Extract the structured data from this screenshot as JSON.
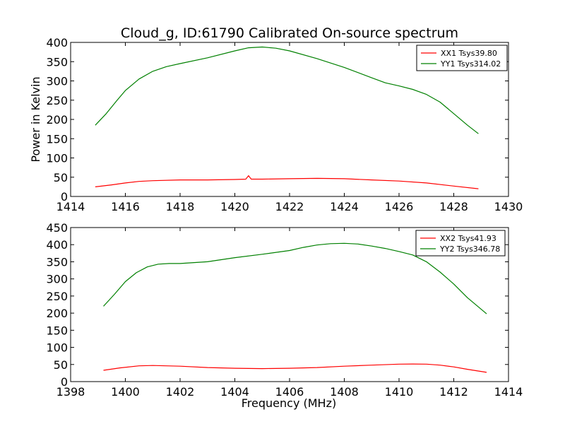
{
  "title": "Cloud_g, ID:61790 Calibrated On-source spectrum",
  "chart_data": [
    {
      "type": "line",
      "xlabel": "",
      "ylabel": "Power in Kelvin",
      "xlim": [
        1414,
        1430
      ],
      "ylim": [
        0,
        400
      ],
      "xticks": [
        1414,
        1416,
        1418,
        1420,
        1422,
        1424,
        1426,
        1428,
        1430
      ],
      "yticks": [
        0,
        50,
        100,
        150,
        200,
        250,
        300,
        350,
        400
      ],
      "legend_position": "top-right",
      "series": [
        {
          "name": "XX1 Tsys39.80",
          "color": "#ff0000",
          "x": [
            1414.9,
            1415.5,
            1416.0,
            1416.5,
            1417.0,
            1418.0,
            1419.0,
            1420.0,
            1420.4,
            1420.5,
            1420.6,
            1421.0,
            1422.0,
            1423.0,
            1424.0,
            1425.0,
            1426.0,
            1427.0,
            1428.0,
            1428.9
          ],
          "y": [
            25,
            30,
            35,
            39,
            41,
            43,
            43,
            44,
            45,
            54,
            45,
            45,
            46,
            47,
            46,
            43,
            40,
            35,
            27,
            20
          ]
        },
        {
          "name": "YY1 Tsys314.02",
          "color": "#008000",
          "x": [
            1414.9,
            1415.3,
            1415.7,
            1416.0,
            1416.5,
            1417.0,
            1417.5,
            1418.0,
            1419.0,
            1420.0,
            1420.5,
            1421.0,
            1421.5,
            1422.0,
            1423.0,
            1424.0,
            1425.0,
            1425.5,
            1426.0,
            1426.5,
            1427.0,
            1427.5,
            1428.0,
            1428.5,
            1428.9
          ],
          "y": [
            185,
            215,
            250,
            275,
            305,
            325,
            337,
            345,
            360,
            378,
            386,
            388,
            385,
            378,
            358,
            335,
            308,
            295,
            287,
            278,
            265,
            245,
            215,
            185,
            163
          ]
        }
      ]
    },
    {
      "type": "line",
      "xlabel": "Frequency (MHz)",
      "ylabel": "",
      "xlim": [
        1398,
        1414
      ],
      "ylim": [
        0,
        450
      ],
      "xticks": [
        1398,
        1400,
        1402,
        1404,
        1406,
        1408,
        1410,
        1412,
        1414
      ],
      "yticks": [
        0,
        50,
        100,
        150,
        200,
        250,
        300,
        350,
        400,
        450
      ],
      "legend_position": "top-right",
      "series": [
        {
          "name": "XX2 Tsys41.93",
          "color": "#ff0000",
          "x": [
            1399.2,
            1399.8,
            1400.5,
            1401.0,
            1402.0,
            1403.0,
            1404.0,
            1405.0,
            1406.0,
            1407.0,
            1408.0,
            1409.0,
            1410.0,
            1410.5,
            1411.0,
            1411.5,
            1412.0,
            1412.5,
            1413.2
          ],
          "y": [
            33,
            40,
            46,
            47,
            45,
            41,
            39,
            38,
            39,
            41,
            45,
            48,
            51,
            51.5,
            51,
            48,
            43,
            36,
            27
          ]
        },
        {
          "name": "YY2 Tsys346.78",
          "color": "#008000",
          "x": [
            1399.2,
            1399.6,
            1400.0,
            1400.4,
            1400.8,
            1401.2,
            1401.6,
            1402.0,
            1403.0,
            1404.0,
            1405.0,
            1406.0,
            1406.5,
            1407.0,
            1407.5,
            1408.0,
            1408.5,
            1409.0,
            1409.5,
            1410.0,
            1410.5,
            1411.0,
            1411.5,
            1412.0,
            1412.5,
            1413.2
          ],
          "y": [
            220,
            255,
            292,
            318,
            335,
            343,
            345,
            345,
            350,
            362,
            372,
            383,
            392,
            399,
            403,
            404,
            402,
            396,
            389,
            380,
            370,
            350,
            320,
            285,
            245,
            198
          ]
        }
      ]
    }
  ]
}
